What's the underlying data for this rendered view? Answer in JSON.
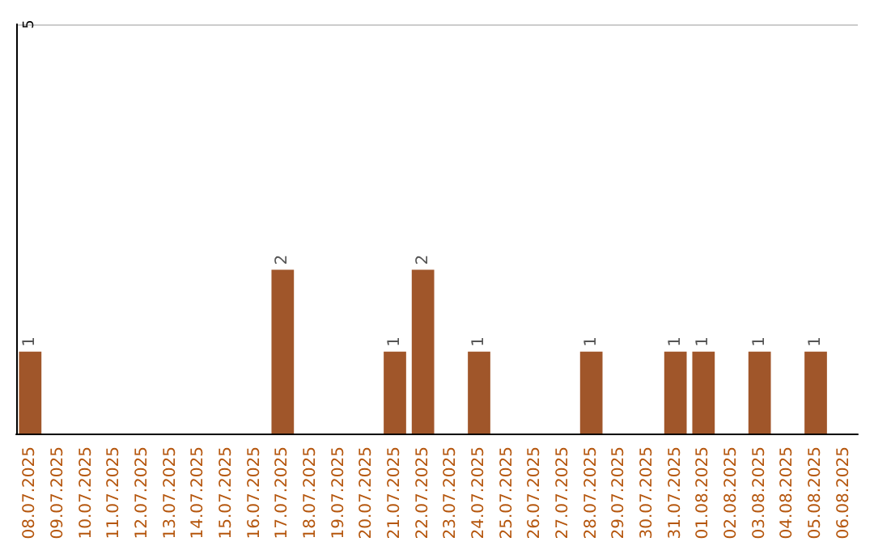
{
  "chart_data": {
    "type": "bar",
    "categories": [
      "08.07.2025",
      "09.07.2025",
      "10.07.2025",
      "11.07.2025",
      "12.07.2025",
      "13.07.2025",
      "14.07.2025",
      "15.07.2025",
      "16.07.2025",
      "17.07.2025",
      "18.07.2025",
      "19.07.2025",
      "20.07.2025",
      "21.07.2025",
      "22.07.2025",
      "23.07.2025",
      "24.07.2025",
      "25.07.2025",
      "26.07.2025",
      "27.07.2025",
      "28.07.2025",
      "29.07.2025",
      "30.07.2025",
      "31.07.2025",
      "01.08.2025",
      "02.08.2025",
      "03.08.2025",
      "04.08.2025",
      "05.08.2025",
      "06.08.2025"
    ],
    "values": [
      1,
      0,
      0,
      0,
      0,
      0,
      0,
      0,
      0,
      2,
      0,
      0,
      0,
      1,
      2,
      0,
      1,
      0,
      0,
      0,
      1,
      0,
      0,
      1,
      1,
      0,
      1,
      0,
      1,
      0
    ],
    "color": "#a0562a",
    "ylim": [
      0,
      5
    ],
    "yticks": [
      5
    ],
    "ref_lines": [
      {
        "axis": "y",
        "value": 5,
        "color": "#cccccc"
      }
    ],
    "value_labels": [
      "1",
      null,
      null,
      null,
      null,
      null,
      null,
      null,
      null,
      "2",
      null,
      null,
      null,
      "1",
      "2",
      null,
      "1",
      null,
      null,
      null,
      "1",
      null,
      null,
      "1",
      "1",
      null,
      "1",
      null,
      "1",
      null
    ]
  }
}
